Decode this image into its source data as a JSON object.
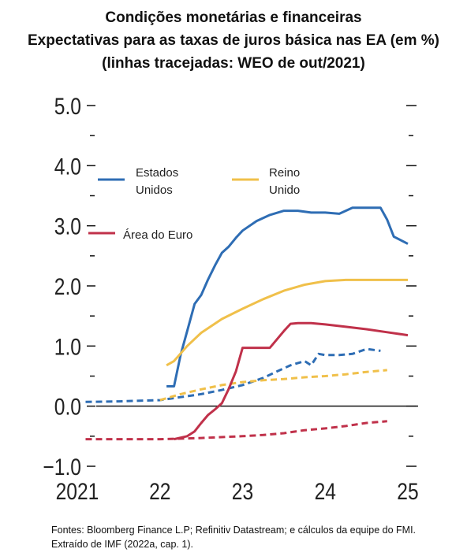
{
  "title_lines": [
    "Condições monetárias e financeiras",
    "Expectativas para as taxas de juros básica nas EA (em %)",
    "(linhas tracejadas: WEO de out/2021)"
  ],
  "source_text": "Fontes: Bloomberg Finance L.P; Refinitiv Datastream; e cálculos da equipe do FMI. Extraído de IMF (2022a, cap. 1).",
  "chart_data": {
    "type": "line",
    "title": "Expectativas para as taxas de juros básica nas EA (em %)",
    "x_ticks": [
      {
        "label": "2021",
        "x": 2021.0
      },
      {
        "label": "22",
        "x": 2022.0
      },
      {
        "label": "23",
        "x": 2023.0
      },
      {
        "label": "24",
        "x": 2024.0
      },
      {
        "label": "25",
        "x": 2025.0
      }
    ],
    "xlim": [
      2020.7,
      2025.12
    ],
    "ylim": [
      -1.0,
      5.0
    ],
    "y_ticks": [
      {
        "label": "5.0",
        "value": 5.0
      },
      {
        "label": "4.0",
        "value": 4.0
      },
      {
        "label": "3.0",
        "value": 3.0
      },
      {
        "label": "2.0",
        "value": 2.0
      },
      {
        "label": "1.0",
        "value": 1.0
      },
      {
        "label": "0.0",
        "value": 0.0
      },
      {
        "label": "−1.0",
        "value": -1.0
      }
    ],
    "minor_y_ticks": [
      4.5,
      3.5,
      2.5,
      1.5,
      0.5,
      -0.5
    ],
    "zero_line": true,
    "grid": false,
    "legend_position": "top-left",
    "series": [
      {
        "name": "Estados Unidos",
        "legend_label_lines": [
          "Estados",
          "Unidos"
        ],
        "color": "#2e6db4",
        "style": "solid",
        "x": [
          2022.08,
          2022.17,
          2022.25,
          2022.33,
          2022.42,
          2022.5,
          2022.58,
          2022.67,
          2022.75,
          2022.83,
          2022.92,
          2023.0,
          2023.17,
          2023.33,
          2023.5,
          2023.67,
          2023.83,
          2024.0,
          2024.17,
          2024.33,
          2024.5,
          2024.67,
          2024.75,
          2024.83,
          2025.0
        ],
        "y": [
          0.33,
          0.33,
          0.85,
          1.25,
          1.7,
          1.85,
          2.1,
          2.35,
          2.55,
          2.65,
          2.8,
          2.92,
          3.08,
          3.18,
          3.25,
          3.25,
          3.22,
          3.22,
          3.2,
          3.3,
          3.3,
          3.3,
          3.1,
          2.82,
          2.7
        ]
      },
      {
        "name": "Reino Unido",
        "legend_label_lines": [
          "Reino",
          "Unido"
        ],
        "color": "#f0c04a",
        "style": "solid",
        "x": [
          2022.08,
          2022.17,
          2022.33,
          2022.5,
          2022.75,
          2023.0,
          2023.25,
          2023.5,
          2023.75,
          2024.0,
          2024.25,
          2024.5,
          2024.75,
          2025.0
        ],
        "y": [
          0.68,
          0.75,
          1.0,
          1.22,
          1.45,
          1.62,
          1.78,
          1.92,
          2.02,
          2.08,
          2.1,
          2.1,
          2.1,
          2.1
        ]
      },
      {
        "name": "Área do Euro",
        "legend_label_lines": [
          "Área do Euro"
        ],
        "color": "#c0314a",
        "style": "solid",
        "x": [
          2022.17,
          2022.33,
          2022.42,
          2022.5,
          2022.58,
          2022.67,
          2022.75,
          2022.83,
          2022.92,
          2023.0,
          2023.17,
          2023.33,
          2023.5,
          2023.58,
          2023.67,
          2023.83,
          2024.0,
          2024.25,
          2024.5,
          2024.75,
          2025.0
        ],
        "y": [
          -0.55,
          -0.5,
          -0.42,
          -0.28,
          -0.15,
          -0.05,
          0.05,
          0.28,
          0.58,
          0.97,
          0.97,
          0.97,
          1.25,
          1.37,
          1.38,
          1.38,
          1.36,
          1.32,
          1.28,
          1.23,
          1.18
        ]
      },
      {
        "name": "Estados Unidos (WEO de out/2021)",
        "color": "#2e6db4",
        "style": "dashed",
        "x": [
          2021.1,
          2021.5,
          2022.0,
          2022.25,
          2022.5,
          2022.75,
          2023.0,
          2023.25,
          2023.42,
          2023.58,
          2023.75,
          2023.83,
          2023.92,
          2024.0,
          2024.17,
          2024.33,
          2024.5,
          2024.67
        ],
        "y": [
          0.07,
          0.08,
          0.1,
          0.15,
          0.2,
          0.27,
          0.35,
          0.47,
          0.58,
          0.68,
          0.75,
          0.68,
          0.87,
          0.85,
          0.85,
          0.87,
          0.95,
          0.92
        ]
      },
      {
        "name": "Reino Unido (WEO de out/2021)",
        "color": "#f0c04a",
        "style": "dashed",
        "x": [
          2022.0,
          2022.25,
          2022.5,
          2022.75,
          2023.0,
          2023.25,
          2023.5,
          2023.75,
          2024.0,
          2024.25,
          2024.5,
          2024.75
        ],
        "y": [
          0.1,
          0.2,
          0.28,
          0.35,
          0.4,
          0.43,
          0.45,
          0.48,
          0.5,
          0.53,
          0.57,
          0.6
        ]
      },
      {
        "name": "Área do Euro (WEO de out/2021)",
        "color": "#c0314a",
        "style": "dashed",
        "x": [
          2021.1,
          2021.5,
          2022.0,
          2022.5,
          2023.0,
          2023.25,
          2023.5,
          2023.75,
          2024.0,
          2024.25,
          2024.5,
          2024.75
        ],
        "y": [
          -0.55,
          -0.55,
          -0.55,
          -0.53,
          -0.5,
          -0.48,
          -0.45,
          -0.4,
          -0.37,
          -0.33,
          -0.28,
          -0.25
        ]
      }
    ]
  }
}
